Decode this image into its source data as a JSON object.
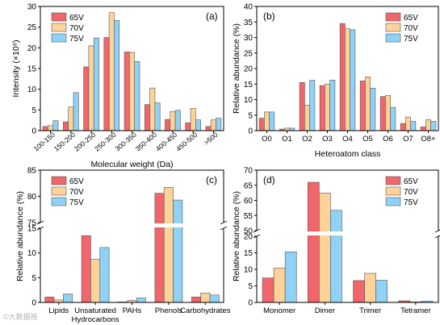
{
  "colors": {
    "65V": "#f0666b",
    "70V": "#fdd39a",
    "75V": "#8fd2f5"
  },
  "watermark": "©大数据格",
  "chart_data": [
    {
      "type": "bar",
      "panel": "(a)",
      "xlabel": "Molecular weight (Da)",
      "ylabel": "Intensity (×10⁸)",
      "ylim": [
        0,
        30
      ],
      "yticks": [
        0,
        5,
        10,
        15,
        20,
        25,
        30
      ],
      "legend": "top-left",
      "categories": [
        "100-150",
        "150-200",
        "200-250",
        "250-300",
        "300-350",
        "350-400",
        "400-450",
        "450-500",
        ">500"
      ],
      "series": [
        {
          "name": "65V",
          "values": [
            1.0,
            2.1,
            15.4,
            22.5,
            19.0,
            6.3,
            2.7,
            1.9,
            1.0
          ]
        },
        {
          "name": "70V",
          "values": [
            1.2,
            5.7,
            20.5,
            28.5,
            18.9,
            10.3,
            4.6,
            5.4,
            2.6
          ]
        },
        {
          "name": "75V",
          "values": [
            2.4,
            9.2,
            22.4,
            26.6,
            16.7,
            6.7,
            4.9,
            2.6,
            3.0
          ]
        }
      ]
    },
    {
      "type": "bar",
      "panel": "(b)",
      "xlabel": "Heteroatom class",
      "ylabel": "Relative abundance (%)",
      "ylim": [
        0,
        40
      ],
      "yticks": [
        0,
        5,
        10,
        15,
        20,
        25,
        30,
        35,
        40
      ],
      "legend": "top-right",
      "categories": [
        "O0",
        "O1",
        "O2",
        "O3",
        "O4",
        "O5",
        "O6",
        "O7",
        "O8+"
      ],
      "series": [
        {
          "name": "65V",
          "values": [
            4.0,
            0.5,
            15.5,
            14.5,
            34.5,
            16.0,
            11.0,
            2.3,
            1.2
          ]
        },
        {
          "name": "70V",
          "values": [
            6.0,
            0.8,
            8.2,
            15.0,
            32.8,
            17.3,
            11.3,
            4.4,
            3.5
          ]
        },
        {
          "name": "75V",
          "values": [
            6.0,
            0.8,
            16.2,
            16.3,
            32.5,
            13.7,
            7.5,
            3.0,
            3.0
          ]
        }
      ]
    },
    {
      "type": "bar",
      "panel": "(c)",
      "ylabel": "Relative abundance (%)",
      "broken_axis": true,
      "ylim_lower": [
        0,
        15
      ],
      "ylim_upper": [
        75,
        85
      ],
      "yticks_lower": [
        0,
        5,
        10,
        15
      ],
      "yticks_upper": [
        75,
        80,
        85
      ],
      "legend": "top-left",
      "categories": [
        "Lipids",
        "Unsaturated\nHydrocarbons",
        "PAHs",
        "Phenols",
        "Carbohydrates"
      ],
      "series": [
        {
          "name": "65V",
          "values": [
            1.1,
            13.5,
            0.0,
            80.6,
            1.1
          ]
        },
        {
          "name": "70V",
          "values": [
            0.5,
            8.7,
            0.4,
            81.7,
            1.9
          ]
        },
        {
          "name": "75V",
          "values": [
            1.7,
            11.1,
            0.9,
            79.3,
            1.5
          ]
        }
      ]
    },
    {
      "type": "bar",
      "panel": "(d)",
      "ylabel": "Relative abundance (%)",
      "broken_axis": true,
      "ylim_lower": [
        0,
        20
      ],
      "ylim_upper": [
        50,
        70
      ],
      "yticks_lower": [
        0,
        5,
        10,
        15,
        20
      ],
      "yticks_upper": [
        50,
        55,
        60,
        65,
        70
      ],
      "legend": "top-right",
      "categories": [
        "Monomer",
        "Dimer",
        "Trimer",
        "Tetramer"
      ],
      "series": [
        {
          "name": "65V",
          "values": [
            7.4,
            66.0,
            6.6,
            0.5
          ]
        },
        {
          "name": "70V",
          "values": [
            10.4,
            62.4,
            8.8,
            0.1
          ]
        },
        {
          "name": "75V",
          "values": [
            15.3,
            56.7,
            6.7,
            0.4
          ]
        }
      ]
    }
  ]
}
